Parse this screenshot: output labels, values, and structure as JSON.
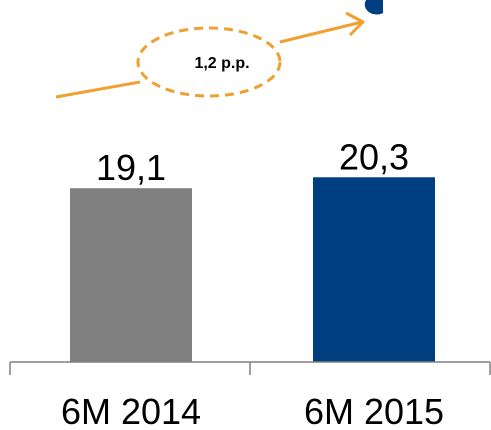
{
  "chart_data": {
    "type": "bar",
    "categories": [
      "6M 2014",
      "6M 2015"
    ],
    "values": [
      19.1,
      20.3
    ],
    "value_labels": [
      "19,1",
      "20,3"
    ],
    "bar_colors": [
      "#808080",
      "#003F7F"
    ],
    "annotation": "1,2 p.p.",
    "annotation_color": "#F0A030",
    "title": "",
    "xlabel": "",
    "ylabel": "",
    "grid": false,
    "legend": "none"
  }
}
